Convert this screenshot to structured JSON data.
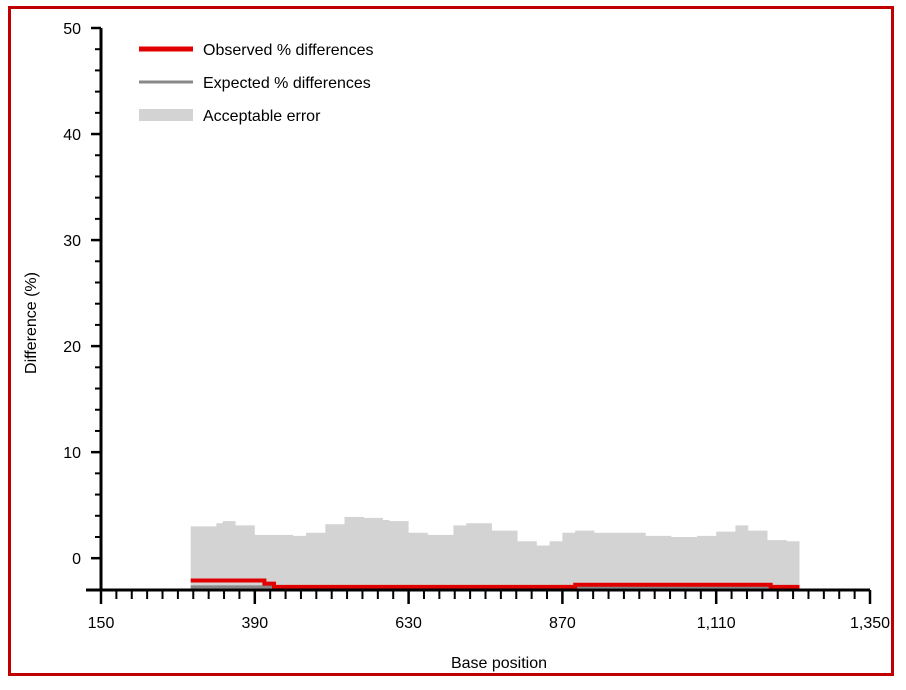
{
  "chart_data": {
    "type": "line",
    "title": "",
    "xlabel": "Base position",
    "ylabel": "Difference (%)",
    "xlim": [
      150,
      1350
    ],
    "ylim": [
      -3,
      50
    ],
    "x_ticks": [
      150,
      390,
      630,
      870,
      1110,
      1350
    ],
    "x_tick_labels": [
      "150",
      "390",
      "630",
      "870",
      "1,110",
      "1,350"
    ],
    "y_ticks": [
      0,
      10,
      20,
      30,
      40,
      50
    ],
    "y_tick_labels": [
      "0",
      "10",
      "20",
      "30",
      "40",
      "50"
    ],
    "legend_position": "top-left",
    "grid": false,
    "colors": {
      "observed": "#e00000",
      "expected": "#888888",
      "acceptable": "#d3d3d3",
      "frame": "#c00000"
    },
    "series": [
      {
        "name": "Observed % differences",
        "kind": "line",
        "x": [
          290,
          390,
          405,
          420,
          880,
          890,
          1180,
          1195,
          1240
        ],
        "y": [
          -2.1,
          -2.1,
          -2.4,
          -2.7,
          -2.7,
          -2.5,
          -2.5,
          -2.7,
          -2.7
        ]
      },
      {
        "name": "Expected % differences",
        "kind": "line",
        "x": [
          290,
          1240
        ],
        "y": [
          -2.7,
          -2.7
        ]
      },
      {
        "name": "Acceptable error",
        "kind": "area",
        "x": [
          290,
          330,
          340,
          360,
          390,
          450,
          470,
          500,
          530,
          560,
          590,
          600,
          630,
          660,
          700,
          720,
          760,
          800,
          830,
          850,
          870,
          890,
          920,
          960,
          1000,
          1040,
          1080,
          1110,
          1140,
          1160,
          1190,
          1220,
          1240
        ],
        "y": [
          3.0,
          3.3,
          3.5,
          3.1,
          2.2,
          2.1,
          2.4,
          3.2,
          3.9,
          3.8,
          3.6,
          3.5,
          2.4,
          2.2,
          3.1,
          3.3,
          2.6,
          1.6,
          1.2,
          1.6,
          2.4,
          2.6,
          2.4,
          2.4,
          2.1,
          2.0,
          2.1,
          2.5,
          3.1,
          2.6,
          1.7,
          1.6,
          1.8
        ],
        "y_base": [
          -3,
          -3,
          -3,
          -3,
          -3,
          -3,
          -3,
          -3,
          -3,
          -3,
          -3,
          -3,
          -3,
          -3,
          -3,
          -3,
          -3,
          -3,
          -3,
          -3,
          -3,
          -3,
          -3,
          -3,
          -3,
          -3,
          -3,
          -3,
          -3,
          -3,
          -3,
          -3,
          -3
        ]
      }
    ]
  }
}
